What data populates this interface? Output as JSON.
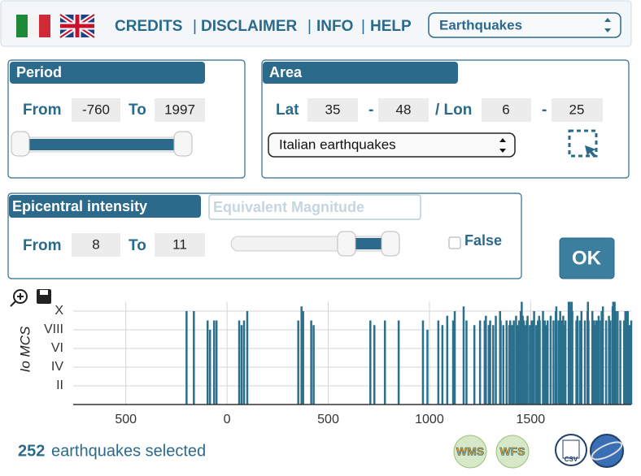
{
  "header": {
    "links": [
      "CREDITS",
      "DISCLAIMER",
      "INFO",
      "HELP"
    ],
    "dataset_select": "Earthquakes"
  },
  "period": {
    "title": "Period",
    "from_label": "From",
    "from": -760,
    "to_label": "To",
    "to": 1997
  },
  "area": {
    "title": "Area",
    "lat_label": "Lat",
    "lat_min": 35,
    "range_separator": "-",
    "lat_max": 48,
    "lon_label": "/ Lon",
    "lon_min": 6,
    "lon_max": 25,
    "region_select": "Italian earthquakes"
  },
  "intensity": {
    "title": "Epicentral intensity",
    "magnitude_placeholder": "Equivalent Magnitude",
    "from_label": "From",
    "from": 8,
    "to_label": "To",
    "to": 11,
    "checkbox_label": "False"
  },
  "ok_button": "OK",
  "chart_data": {
    "type": "bar",
    "ylabel": "Io MCS",
    "color": "#2a6f8c",
    "x": [
      -200,
      -164,
      -96,
      -84,
      -64,
      -52,
      60,
      72,
      84,
      100,
      352,
      368,
      376,
      416,
      428,
      708,
      728,
      780,
      848,
      968,
      990,
      1044,
      1064,
      1088,
      1117,
      1125,
      1169,
      1183,
      1222,
      1250,
      1273,
      1279,
      1293,
      1300,
      1315,
      1328,
      1349,
      1352,
      1365,
      1381,
      1394,
      1399,
      1409,
      1417,
      1428,
      1436,
      1443,
      1451,
      1456,
      1461,
      1466,
      1472,
      1481,
      1485,
      1496,
      1505,
      1511,
      1517,
      1528,
      1536,
      1542,
      1545,
      1561,
      1570,
      1574,
      1584,
      1599,
      1613,
      1624,
      1627,
      1638,
      1646,
      1654,
      1661,
      1664,
      1672,
      1688,
      1693,
      1694,
      1702,
      1703,
      1706,
      1726,
      1731,
      1743,
      1751,
      1768,
      1781,
      1783,
      1786,
      1805,
      1812,
      1818,
      1823,
      1828,
      1831,
      1836,
      1846,
      1851,
      1857,
      1873,
      1887,
      1894,
      1905,
      1908,
      1915,
      1920,
      1930,
      1943,
      1962,
      1968,
      1976,
      1980,
      1990,
      1997
    ],
    "values": [
      10,
      10,
      9,
      8,
      9,
      9,
      9,
      8.5,
      9,
      10,
      9,
      10.5,
      10,
      9,
      8.5,
      9,
      8.5,
      9,
      9,
      9,
      8,
      9,
      8.5,
      9.5,
      9,
      10,
      10.5,
      9,
      8.5,
      9,
      9,
      9.5,
      8.5,
      9,
      8.5,
      9.5,
      10,
      9,
      8.5,
      9,
      8.5,
      9,
      8.5,
      9,
      9.5,
      8.5,
      9,
      10,
      11,
      9.5,
      9,
      8.5,
      9,
      9.5,
      8.5,
      9,
      9,
      10,
      8.5,
      9,
      9.5,
      9,
      10,
      9,
      8.5,
      9,
      9.5,
      9,
      10,
      10.5,
      9,
      10,
      9,
      9.5,
      8.5,
      9,
      11,
      11,
      10,
      10.5,
      11,
      10,
      9,
      9.5,
      9,
      10,
      9,
      10,
      11,
      9,
      10,
      9,
      8.5,
      9,
      9,
      8.5,
      9.5,
      9,
      10,
      10.5,
      9,
      9.5,
      9,
      10.5,
      11,
      11,
      10,
      10,
      9,
      9,
      10,
      10,
      10,
      8.5,
      9
    ],
    "xlim": [
      -760,
      1997
    ],
    "ylim": [
      0,
      11
    ],
    "xticks": [
      {
        "value": -500,
        "label": "500"
      },
      0,
      500,
      1000,
      1500
    ],
    "yticks": [
      {
        "value": 2,
        "label": "II"
      },
      {
        "value": 4,
        "label": "IV"
      },
      {
        "value": 6,
        "label": "VI"
      },
      {
        "value": 8,
        "label": "VIII"
      },
      {
        "value": 10,
        "label": "X"
      }
    ],
    "grid": true
  },
  "footer": {
    "count": 252,
    "count_label": "earthquakes selected",
    "icons": [
      "WMS",
      "WFS",
      "CSV"
    ]
  }
}
